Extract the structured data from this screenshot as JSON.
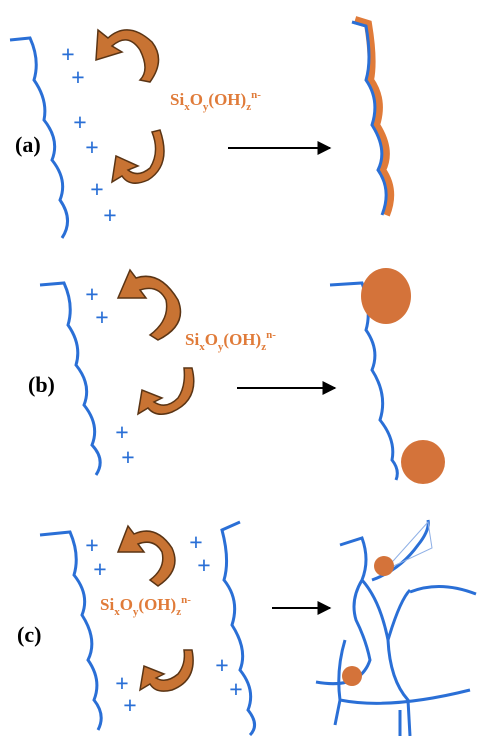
{
  "charge_symbol": "+",
  "panels": [
    {
      "label": "(a)",
      "formula": [
        "Si",
        "x",
        "O",
        "y",
        "(OH)",
        "z",
        "n-"
      ]
    },
    {
      "label": "(b)",
      "formula": [
        "Si",
        "x",
        "O",
        "y",
        "(OH)",
        "z",
        "n-"
      ]
    },
    {
      "label": "(c)",
      "formula": [
        "Si",
        "x",
        "O",
        "y",
        "(OH)",
        "z",
        "n-"
      ]
    }
  ]
}
